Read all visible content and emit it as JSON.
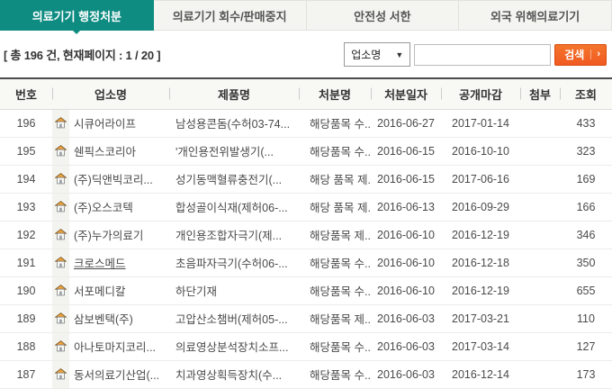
{
  "colors": {
    "accent_teal": "#0E8C82",
    "button_orange": "#F05A22"
  },
  "tabs": [
    {
      "label": "의료기기 행정처분",
      "active": true
    },
    {
      "label": "의료기기 회수/판매중지",
      "active": false
    },
    {
      "label": "안전성 서한",
      "active": false
    },
    {
      "label": "외국 위해의료기기",
      "active": false
    }
  ],
  "toolbar": {
    "summary": "[ 총 196 건, 현재페이지 : 1 / 20 ]",
    "search_category": "업소명",
    "dropdown_arrow": "▼",
    "search_value": "",
    "search_button": "검색",
    "button_arrow": "›"
  },
  "table": {
    "headers": [
      "번호",
      "업소명",
      "제품명",
      "처분명",
      "처분일자",
      "공개마감",
      "첨부",
      "조회"
    ],
    "rows": [
      {
        "no": "196",
        "company": "시큐어라이프",
        "underline": false,
        "product": "남성용콘돔(수허03-74...",
        "disposition": "해당품목 수...",
        "date": "2016-06-27",
        "deadline": "2017-01-14",
        "attachment": "",
        "views": "433"
      },
      {
        "no": "195",
        "company": "쉔픽스코리아",
        "underline": false,
        "product": "'개인용전위발생기(...",
        "disposition": "해당품목 수...",
        "date": "2016-06-15",
        "deadline": "2016-10-10",
        "attachment": "",
        "views": "323"
      },
      {
        "no": "194",
        "company": "(주)딕앤빅코리...",
        "underline": false,
        "product": "성기동맥혈류충전기(...",
        "disposition": "해당 품목 제...",
        "date": "2016-06-15",
        "deadline": "2017-06-16",
        "attachment": "",
        "views": "169"
      },
      {
        "no": "193",
        "company": "(주)오스코텍",
        "underline": false,
        "product": "합성골이식재(제허06-...",
        "disposition": "해당 품목 제...",
        "date": "2016-06-13",
        "deadline": "2016-09-29",
        "attachment": "",
        "views": "166"
      },
      {
        "no": "192",
        "company": "(주)누가의료기",
        "underline": false,
        "product": "개인용조합자극기(제...",
        "disposition": "해당품목 제...",
        "date": "2016-06-10",
        "deadline": "2016-12-19",
        "attachment": "",
        "views": "346"
      },
      {
        "no": "191",
        "company": "크로스메드",
        "underline": true,
        "product": "초음파자극기(수허06-...",
        "disposition": "해당품목 수...",
        "date": "2016-06-10",
        "deadline": "2016-12-18",
        "attachment": "",
        "views": "350"
      },
      {
        "no": "190",
        "company": "서포메디칼",
        "underline": false,
        "product": "하단기재",
        "disposition": "해당품목 수...",
        "date": "2016-06-10",
        "deadline": "2016-12-19",
        "attachment": "",
        "views": "655"
      },
      {
        "no": "189",
        "company": "삼보벤택(주)",
        "underline": false,
        "product": "고압산소챔버(제허05-...",
        "disposition": "해당품목 제...",
        "date": "2016-06-03",
        "deadline": "2017-03-21",
        "attachment": "",
        "views": "110"
      },
      {
        "no": "188",
        "company": "아나토마지코리...",
        "underline": false,
        "product": "의료영상분석장치소프...",
        "disposition": "해당품목 수...",
        "date": "2016-06-03",
        "deadline": "2017-03-14",
        "attachment": "",
        "views": "127"
      },
      {
        "no": "187",
        "company": "동서의료기산업(...",
        "underline": false,
        "product": "치과영상획득장치(수...",
        "disposition": "해당품목 수...",
        "date": "2016-06-03",
        "deadline": "2016-12-14",
        "attachment": "",
        "views": "173"
      }
    ]
  }
}
